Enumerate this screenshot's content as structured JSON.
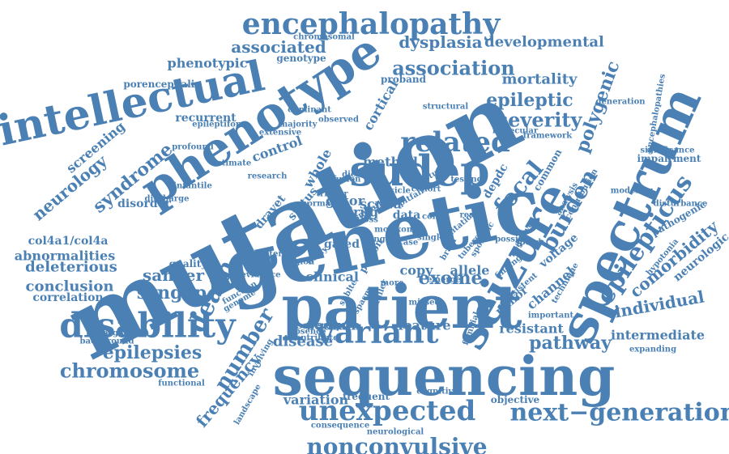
{
  "colors": {
    "word": "#4a80b4",
    "background": "#ffffff"
  },
  "words": [
    {
      "text": "mutation"
    },
    {
      "text": "genetic"
    },
    {
      "text": "patient"
    },
    {
      "text": "sequencing"
    },
    {
      "text": "spectrum"
    },
    {
      "text": "phenotype"
    },
    {
      "text": "seizure"
    },
    {
      "text": "intellectual"
    },
    {
      "text": "sudep"
    },
    {
      "text": "encephalopathy"
    },
    {
      "text": "disability"
    },
    {
      "text": "variant"
    },
    {
      "text": "unexpected"
    },
    {
      "text": "nonconvulsive"
    },
    {
      "text": "next−generation"
    },
    {
      "text": "related"
    },
    {
      "text": "epilepticus"
    },
    {
      "text": "association"
    },
    {
      "text": "focal"
    },
    {
      "text": "burden"
    },
    {
      "text": "severity"
    },
    {
      "text": "death"
    },
    {
      "text": "number"
    },
    {
      "text": "chromosome"
    },
    {
      "text": "epileptic"
    },
    {
      "text": "polygenic"
    },
    {
      "text": "comorbidity"
    },
    {
      "text": "individual"
    },
    {
      "text": "syndrome"
    },
    {
      "text": "dysplasia"
    },
    {
      "text": "developmental"
    },
    {
      "text": "associated"
    },
    {
      "text": "mortality"
    },
    {
      "text": "frequency"
    },
    {
      "text": "epilepsies"
    },
    {
      "text": "syngap"
    },
    {
      "text": "sanger"
    },
    {
      "text": "pathway"
    },
    {
      "text": "exome"
    },
    {
      "text": "neurology"
    },
    {
      "text": "phenotypic"
    },
    {
      "text": "screening"
    },
    {
      "text": "deleterious"
    },
    {
      "text": "conclusion"
    },
    {
      "text": "abnormalities"
    },
    {
      "text": "clinical"
    },
    {
      "text": "intermediate"
    },
    {
      "text": "correlation"
    },
    {
      "text": "neurologic"
    },
    {
      "text": "disease"
    },
    {
      "text": "variation"
    },
    {
      "text": "feature"
    },
    {
      "text": "sodium"
    },
    {
      "text": "channel"
    },
    {
      "text": "resistant"
    },
    {
      "text": "control"
    },
    {
      "text": "col4a1/col4a"
    },
    {
      "text": "recurrent"
    },
    {
      "text": "method"
    },
    {
      "text": "drug"
    },
    {
      "text": "scn1a"
    },
    {
      "text": "gator"
    },
    {
      "text": "depdc"
    },
    {
      "text": "whole"
    },
    {
      "text": "cortical"
    },
    {
      "text": "status"
    },
    {
      "text": "dravet"
    },
    {
      "text": "allele"
    },
    {
      "text": "copy"
    },
    {
      "text": "gated"
    },
    {
      "text": "data"
    },
    {
      "text": "voltage"
    },
    {
      "text": "pathogenic"
    },
    {
      "text": "quality"
    },
    {
      "text": "genotype"
    },
    {
      "text": "proband"
    },
    {
      "text": "porencephalic"
    },
    {
      "text": "impairment"
    },
    {
      "text": "encephalopathies"
    },
    {
      "text": "generation"
    },
    {
      "text": "minor"
    },
    {
      "text": "objective"
    },
    {
      "text": "frequent"
    },
    {
      "text": "severe"
    },
    {
      "text": "functional"
    },
    {
      "text": "disorder"
    },
    {
      "text": "hypotonia"
    },
    {
      "text": "expanding"
    },
    {
      "text": "parg237trp"
    },
    {
      "text": "background"
    },
    {
      "text": "cognitive"
    },
    {
      "text": "chromosomal"
    },
    {
      "text": "majority"
    },
    {
      "text": "infantile"
    },
    {
      "text": "testing"
    },
    {
      "text": "negative"
    },
    {
      "text": "common"
    },
    {
      "text": "modeling"
    },
    {
      "text": "significance"
    },
    {
      "text": "result"
    },
    {
      "text": "important"
    },
    {
      "text": "function"
    },
    {
      "text": "genome"
    },
    {
      "text": "epileptiform"
    },
    {
      "text": "study"
    },
    {
      "text": "framework"
    },
    {
      "text": "col4a"
    },
    {
      "text": "person"
    },
    {
      "text": "landscape"
    },
    {
      "text": "involving"
    },
    {
      "text": "consequence"
    },
    {
      "text": "neurological"
    },
    {
      "text": "missed"
    },
    {
      "text": "protein"
    },
    {
      "text": "region"
    },
    {
      "text": "discharge"
    },
    {
      "text": "structural"
    },
    {
      "text": "most"
    },
    {
      "text": "ring"
    },
    {
      "text": "rare"
    },
    {
      "text": "loss"
    },
    {
      "text": "exon"
    },
    {
      "text": "single"
    },
    {
      "text": "brain"
    },
    {
      "text": "possible"
    },
    {
      "text": "case"
    },
    {
      "text": "vesicle"
    },
    {
      "text": "dominant"
    },
    {
      "text": "observed"
    },
    {
      "text": "research"
    },
    {
      "text": "estimate"
    },
    {
      "text": "profound"
    },
    {
      "text": "extensive"
    },
    {
      "text": "molecular"
    },
    {
      "text": "technique"
    },
    {
      "text": "familial"
    },
    {
      "text": "evidence"
    },
    {
      "text": "absence"
    },
    {
      "text": "contribute"
    },
    {
      "text": "emerge"
    },
    {
      "text": "more"
    },
    {
      "text": "normal"
    },
    {
      "text": "fusion"
    },
    {
      "text": "dieker"
    },
    {
      "text": "trigger"
    },
    {
      "text": "cohort"
    },
    {
      "text": "pitfall"
    },
    {
      "text": "finding"
    },
    {
      "text": "consistent"
    },
    {
      "text": "analysis"
    },
    {
      "text": "contribution"
    },
    {
      "text": "disturbance"
    },
    {
      "text": "sporadic"
    },
    {
      "text": "smooth"
    },
    {
      "text": "sublte"
    },
    {
      "text": "spasm"
    },
    {
      "text": "miller"
    },
    {
      "text": "delay"
    },
    {
      "text": "tuberous"
    },
    {
      "text": "limitation"
    },
    {
      "text": "speed"
    }
  ]
}
